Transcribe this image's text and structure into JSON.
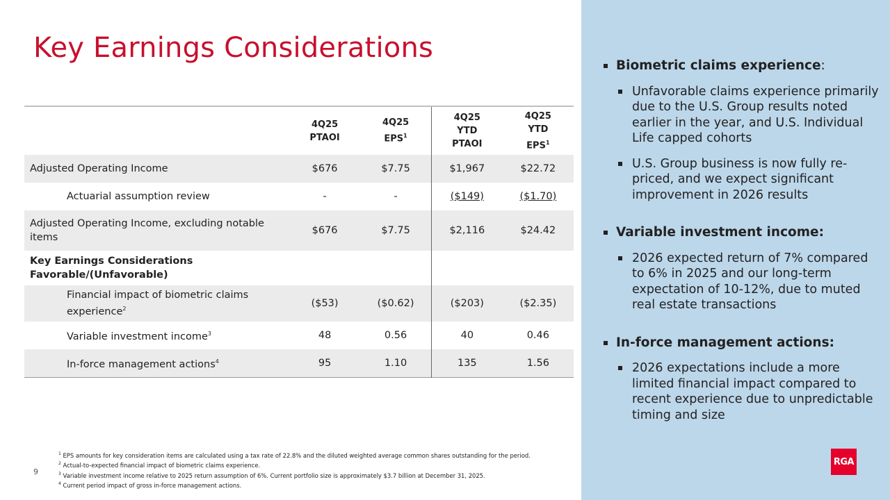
{
  "title": "Key Earnings Considerations",
  "table": {
    "headers": [
      [
        "4Q25",
        "PTAOI",
        ""
      ],
      [
        "4Q25",
        "EPS",
        "1"
      ],
      [
        "4Q25",
        "YTD",
        "PTAOI"
      ],
      [
        "4Q25",
        "YTD",
        "EPS"
      ]
    ],
    "rows": [
      {
        "label": "Adjusted Operating Income",
        "sup": "",
        "values": [
          "$676",
          "$7.75",
          "$1,967",
          "$22.72"
        ]
      },
      {
        "label": "Actuarial assumption review",
        "sup": "",
        "values": [
          "-",
          "-",
          "($149)",
          "($1.70)"
        ]
      },
      {
        "label": "Adjusted Operating Income, excluding notable items",
        "sup": "",
        "values": [
          "$676",
          "$7.75",
          "$2,116",
          "$24.42"
        ]
      },
      {
        "label": "Key Earnings Considerations Favorable/(Unfavorable)",
        "sup": "",
        "values": [
          "",
          "",
          "",
          ""
        ]
      },
      {
        "label": "Financial impact of biometric claims experience",
        "sup": "2",
        "values": [
          "($53)",
          "($0.62)",
          "($203)",
          "($2.35)"
        ]
      },
      {
        "label": "Variable investment income",
        "sup": "3",
        "values": [
          "48",
          "0.56",
          "40",
          "0.46"
        ]
      },
      {
        "label": "In-force management actions",
        "sup": "4",
        "values": [
          "95",
          "1.10",
          "135",
          "1.56"
        ]
      }
    ]
  },
  "footnotes": [
    {
      "n": "1",
      "text": "EPS amounts for key consideration items are calculated using a tax rate of 22.8% and the diluted weighted average common shares outstanding for the period."
    },
    {
      "n": "2",
      "text": "Actual-to-expected financial impact of biometric claims experience."
    },
    {
      "n": "3",
      "text": "Variable investment income relative to 2025 return assumption of 6%. Current portfolio size is approximately $3.7 billion at December 31, 2025."
    },
    {
      "n": "4",
      "text": "Current period impact of gross in-force management actions."
    }
  ],
  "page_number": "9",
  "logo": "RGA",
  "right": [
    {
      "heading": "Biometric claims experience",
      "suffix": ":",
      "bullets": [
        "Unfavorable claims experience primarily due to the U.S. Group results noted earlier in the year, and U.S. Individual Life capped cohorts",
        "U.S. Group business is now fully re-priced, and we expect significant improvement in 2026 results"
      ]
    },
    {
      "heading": "Variable investment income:",
      "suffix": "",
      "bullets": [
        "2026 expected return of 7% compared to 6% in 2025 and our long-term expectation of 10-12%, due to muted real estate transactions"
      ]
    },
    {
      "heading": "In-force management actions:",
      "suffix": "",
      "bullets": [
        "2026 expectations include a more limited financial impact compared to recent experience due to unpredictable timing and size"
      ]
    }
  ],
  "colors": {
    "title": "#c8102e",
    "panel": "#bdd7ea",
    "logo": "#e4002b"
  }
}
